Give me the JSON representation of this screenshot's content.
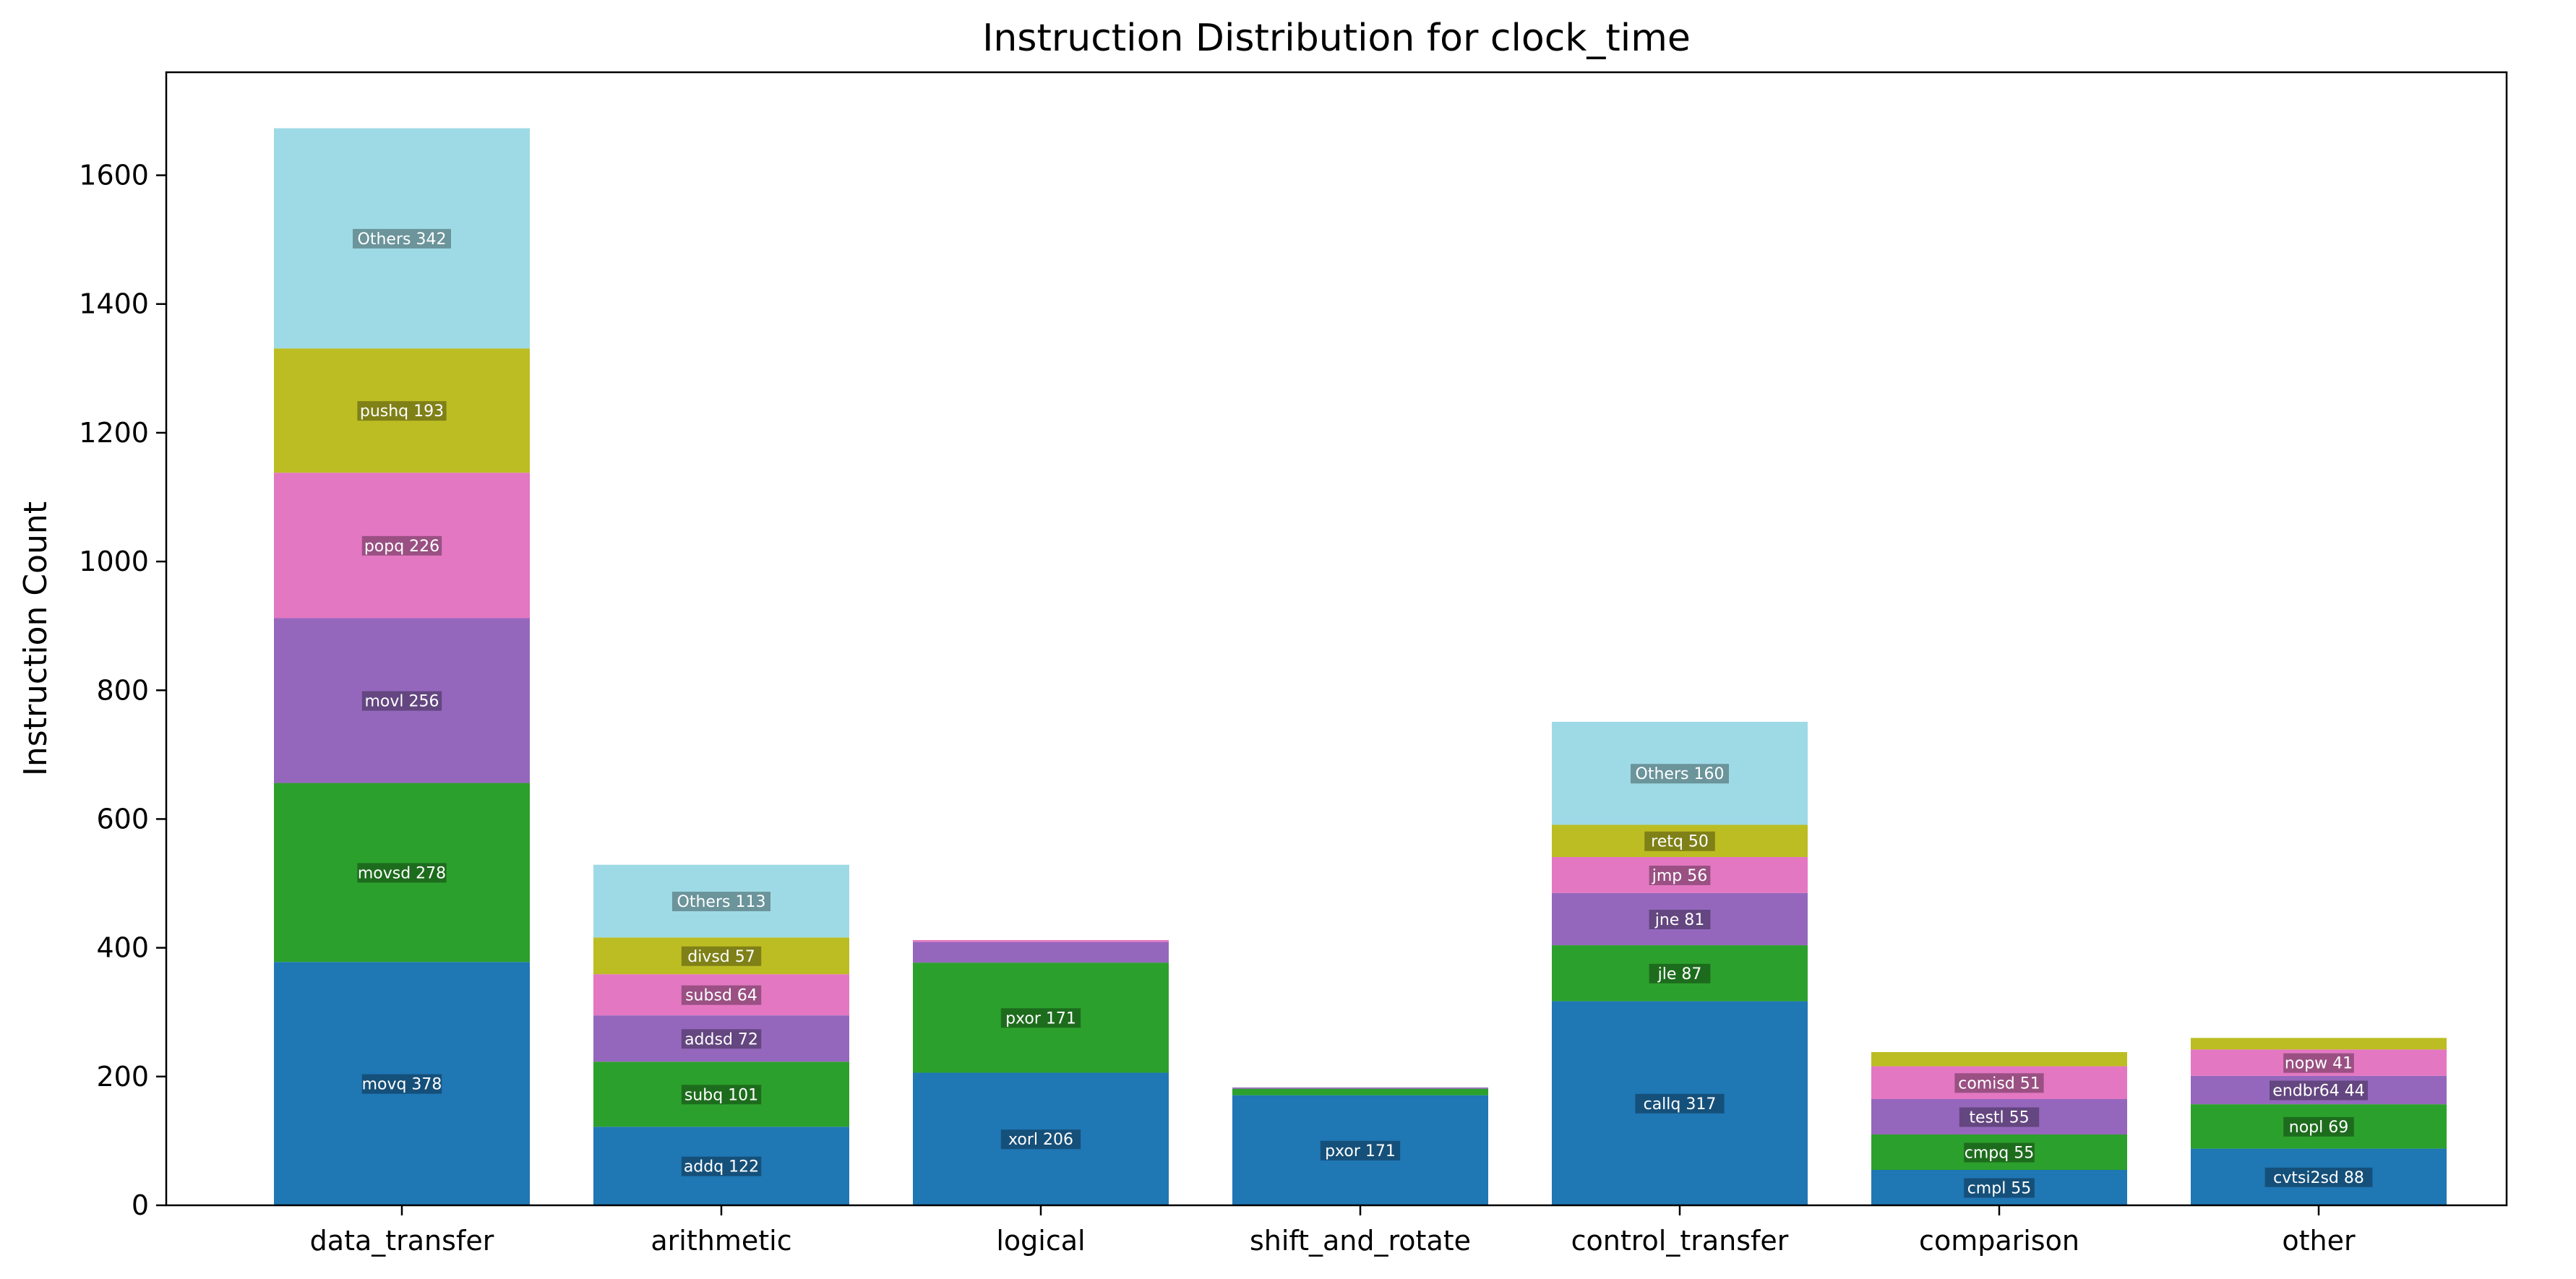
{
  "chart_data": {
    "type": "bar",
    "stacked": true,
    "title": "Instruction Distribution for clock_time",
    "xlabel": "",
    "ylabel": "Instruction Count",
    "ylim": [
      0,
      1760
    ],
    "yticks": [
      0,
      200,
      400,
      600,
      800,
      1000,
      1200,
      1400,
      1600
    ],
    "grid": false,
    "categories": [
      "data_transfer",
      "arithmetic",
      "logical",
      "shift_and_rotate",
      "control_transfer",
      "comparison",
      "other"
    ],
    "palette": [
      "#1f77b4",
      "#2ca02c",
      "#9467bd",
      "#e377c2",
      "#bcbd22",
      "#9edae5"
    ],
    "stacks": [
      {
        "category": "data_transfer",
        "segments": [
          {
            "label": "movq",
            "value": 378,
            "text": "movq 378"
          },
          {
            "label": "movsd",
            "value": 278,
            "text": "movsd 278"
          },
          {
            "label": "movl",
            "value": 256,
            "text": "movl 256"
          },
          {
            "label": "popq",
            "value": 226,
            "text": "popq 226"
          },
          {
            "label": "pushq",
            "value": 193,
            "text": "pushq 193"
          },
          {
            "label": "Others",
            "value": 342,
            "text": "Others 342"
          }
        ]
      },
      {
        "category": "arithmetic",
        "segments": [
          {
            "label": "addq",
            "value": 122,
            "text": "addq 122"
          },
          {
            "label": "subq",
            "value": 101,
            "text": "subq 101"
          },
          {
            "label": "addsd",
            "value": 72,
            "text": "addsd 72"
          },
          {
            "label": "subsd",
            "value": 64,
            "text": "subsd 64"
          },
          {
            "label": "divsd",
            "value": 57,
            "text": "divsd 57"
          },
          {
            "label": "Others",
            "value": 113,
            "text": "Others 113"
          }
        ]
      },
      {
        "category": "logical",
        "segments": [
          {
            "label": "xorl",
            "value": 206,
            "text": "xorl 206"
          },
          {
            "label": "pxor",
            "value": 171,
            "text": "pxor 171"
          },
          {
            "label": "",
            "value": 32,
            "text": ""
          },
          {
            "label": "",
            "value": 3,
            "text": ""
          }
        ]
      },
      {
        "category": "shift_and_rotate",
        "segments": [
          {
            "label": "pxor",
            "value": 171,
            "text": "pxor 171"
          },
          {
            "label": "",
            "value": 10,
            "text": ""
          },
          {
            "label": "",
            "value": 2,
            "text": ""
          }
        ]
      },
      {
        "category": "control_transfer",
        "segments": [
          {
            "label": "callq",
            "value": 317,
            "text": "callq 317"
          },
          {
            "label": "jle",
            "value": 87,
            "text": "jle 87"
          },
          {
            "label": "jne",
            "value": 81,
            "text": "jne 81"
          },
          {
            "label": "jmp",
            "value": 56,
            "text": "jmp 56"
          },
          {
            "label": "retq",
            "value": 50,
            "text": "retq 50"
          },
          {
            "label": "Others",
            "value": 160,
            "text": "Others 160"
          }
        ]
      },
      {
        "category": "comparison",
        "segments": [
          {
            "label": "cmpl",
            "value": 55,
            "text": "cmpl 55"
          },
          {
            "label": "cmpq",
            "value": 55,
            "text": "cmpq 55"
          },
          {
            "label": "testl",
            "value": 55,
            "text": "testl 55"
          },
          {
            "label": "comisd",
            "value": 51,
            "text": "comisd 51"
          },
          {
            "label": "",
            "value": 22,
            "text": ""
          }
        ]
      },
      {
        "category": "other",
        "segments": [
          {
            "label": "cvtsi2sd",
            "value": 88,
            "text": "cvtsi2sd 88"
          },
          {
            "label": "nopl",
            "value": 69,
            "text": "nopl 69"
          },
          {
            "label": "endbr64",
            "value": 44,
            "text": "endbr64 44"
          },
          {
            "label": "nopw",
            "value": 41,
            "text": "nopw 41"
          },
          {
            "label": "",
            "value": 18,
            "text": ""
          }
        ]
      }
    ]
  }
}
